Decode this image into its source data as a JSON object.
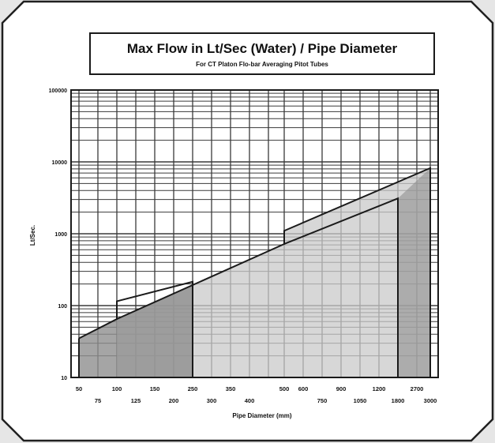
{
  "chart_data": {
    "type": "area",
    "title": "Max Flow in Lt/Sec  (Water) / Pipe Diameter",
    "subtitle": "For CT Platon Flo-bar Averaging Pitot Tubes",
    "xlabel": "Pipe Diameter (mm)",
    "ylabel": "Lt/Sec.",
    "y_scale": "log",
    "ylim": [
      10,
      100000
    ],
    "y_ticks": [
      "10",
      "100",
      "1000",
      "10000",
      "100000"
    ],
    "x_tick_rows": {
      "top": [
        "50",
        "100",
        "150",
        "250",
        "350",
        "500",
        "600",
        "900",
        "1200",
        "2700"
      ],
      "bottom": [
        "75",
        "125",
        "200",
        "300",
        "400",
        "750",
        "1050",
        "1800",
        "3000"
      ]
    },
    "grid": true,
    "series": [
      {
        "color": "#1a1a1a",
        "x": [
          "50",
          "100",
          "100",
          "250"
        ],
        "y": [
          35,
          65,
          115,
          215
        ]
      },
      {
        "color": "#1a1a1a",
        "x": [
          "100",
          "500",
          "500",
          "3000"
        ],
        "y": [
          65,
          720,
          1100,
          8200
        ]
      },
      {
        "color": "#1a1a1a",
        "x": [
          "500",
          "1800"
        ],
        "y": [
          720,
          3100
        ]
      }
    ],
    "shading": {
      "light": "#c9c9c9",
      "dark": "#8f8f8f"
    }
  }
}
